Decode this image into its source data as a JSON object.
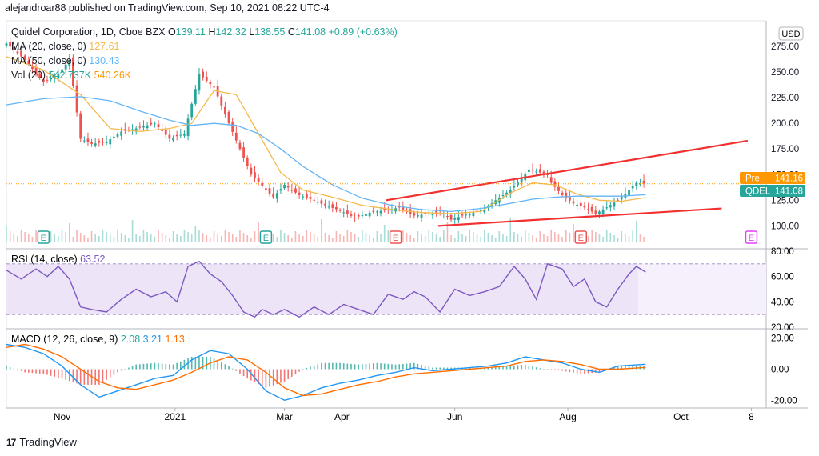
{
  "header": {
    "published": "alejandroar88 published on TradingView.com, Sep 10, 2021 08:22 UTC-4"
  },
  "footer": {
    "brand": "TradingView"
  },
  "colors": {
    "up": "#26a69a",
    "down": "#ef5350",
    "ma20": "#f6b94b",
    "ma50": "#64b5f6",
    "rsi": "#7e57c2",
    "trend": "#f23030",
    "pre": "#ff9800",
    "last": "#26a69a"
  },
  "chart_data": [
    {
      "type": "line",
      "title": "Quidel Corporation, 1D, Cboe BZX",
      "ohlc": {
        "o_label": "O",
        "o": "139.11",
        "h_label": "H",
        "h": "142.32",
        "l_label": "L",
        "l": "138.55",
        "c_label": "C",
        "c": "141.08",
        "change": "+0.89 (+0.63%)"
      },
      "currency": "USD",
      "indicators": [
        {
          "label": "MA (20, close, 0)",
          "value": "127.61"
        },
        {
          "label": "MA (50, close, 0)",
          "value": "130.43"
        },
        {
          "label": "Vol (20)",
          "value": "542.737K",
          "value2": "540.26K"
        }
      ],
      "ylim": [
        80,
        300
      ],
      "yticks": [
        "100.00",
        "125.00",
        "150.00",
        "175.00",
        "200.00",
        "225.00",
        "250.00",
        "275.00"
      ],
      "x_labels": [
        {
          "label": "Nov",
          "day": 30
        },
        {
          "label": "2021",
          "day": 91
        },
        {
          "label": "Mar",
          "day": 150
        },
        {
          "label": "Apr",
          "day": 181
        },
        {
          "label": "Jun",
          "day": 242
        },
        {
          "label": "Aug",
          "day": 303
        },
        {
          "label": "Oct",
          "day": 364
        },
        {
          "label": "8",
          "day": 402
        }
      ],
      "day_range": [
        0,
        410
      ],
      "last_day": 345,
      "series": [
        {
          "name": "Close",
          "x": [
            0,
            10,
            20,
            28,
            34,
            40,
            46,
            54,
            62,
            70,
            80,
            88,
            96,
            104,
            112,
            120,
            132,
            144,
            150,
            158,
            166,
            172,
            180,
            188,
            196,
            204,
            212,
            220,
            228,
            236,
            240,
            246,
            252,
            258,
            264,
            272,
            282,
            292,
            294,
            300,
            306,
            312,
            318,
            324,
            330,
            336,
            340,
            345
          ],
          "values": [
            278,
            262,
            240,
            248,
            262,
            185,
            180,
            182,
            192,
            195,
            200,
            185,
            190,
            248,
            235,
            200,
            150,
            128,
            140,
            130,
            125,
            120,
            115,
            108,
            113,
            115,
            118,
            110,
            112,
            112,
            106,
            110,
            113,
            116,
            125,
            135,
            155,
            150,
            142,
            130,
            122,
            118,
            112,
            118,
            125,
            135,
            142,
            141.08
          ]
        },
        {
          "name": "MA (20, close, 0)",
          "x": [
            0,
            20,
            40,
            56,
            72,
            88,
            100,
            112,
            124,
            136,
            148,
            160,
            176,
            192,
            208,
            224,
            240,
            256,
            272,
            284,
            296,
            308,
            320,
            332,
            345
          ],
          "values": [
            265,
            252,
            228,
            195,
            192,
            195,
            200,
            232,
            228,
            190,
            152,
            135,
            128,
            120,
            116,
            113,
            112,
            114,
            132,
            142,
            140,
            131,
            125,
            124,
            127.61
          ]
        },
        {
          "name": "MA (50, close, 0)",
          "x": [
            0,
            20,
            40,
            56,
            72,
            88,
            100,
            112,
            124,
            136,
            148,
            160,
            176,
            192,
            208,
            224,
            240,
            256,
            272,
            284,
            296,
            308,
            320,
            332,
            345
          ],
          "values": [
            218,
            224,
            226,
            222,
            212,
            203,
            198,
            200,
            198,
            190,
            175,
            158,
            140,
            127,
            120,
            116,
            114,
            117,
            122,
            126,
            128,
            129,
            129,
            129,
            130.43
          ]
        }
      ],
      "events": [
        {
          "type": "earnings",
          "label": "E",
          "day": 20,
          "status": "past-beat"
        },
        {
          "type": "earnings",
          "label": "E",
          "day": 140,
          "status": "past-beat"
        },
        {
          "type": "earnings",
          "label": "E",
          "day": 210,
          "status": "past-miss"
        },
        {
          "type": "earnings",
          "label": "E",
          "day": 310,
          "status": "past-miss"
        },
        {
          "type": "earnings",
          "label": "E",
          "day": 402,
          "status": "upcoming"
        }
      ],
      "trendlines": [
        {
          "from": [
            205,
            125
          ],
          "to": [
            400,
            183
          ]
        },
        {
          "from": [
            233,
            100
          ],
          "to": [
            386,
            117
          ]
        }
      ],
      "price_labels": [
        {
          "tag": "Pre",
          "value": "141.16",
          "color": "#ff9800"
        },
        {
          "tag": "QDEL",
          "value": "141.08",
          "color": "#26a69a"
        }
      ]
    },
    {
      "type": "line",
      "title": "RSI (14, close)",
      "value": "63.52",
      "ylim": [
        20,
        80
      ],
      "yticks": [
        "20.00",
        "40.00",
        "60.00",
        "80.00"
      ],
      "band": [
        30,
        70
      ],
      "series": [
        {
          "name": "RSI",
          "x": [
            0,
            8,
            16,
            22,
            28,
            34,
            40,
            46,
            54,
            62,
            70,
            78,
            86,
            92,
            98,
            104,
            110,
            116,
            122,
            128,
            134,
            138,
            144,
            150,
            158,
            166,
            174,
            182,
            190,
            198,
            206,
            214,
            220,
            226,
            234,
            242,
            250,
            258,
            266,
            274,
            280,
            286,
            292,
            300,
            306,
            312,
            318,
            324,
            330,
            336,
            340,
            345
          ],
          "values": [
            65,
            58,
            66,
            60,
            68,
            58,
            36,
            34,
            32,
            42,
            50,
            44,
            48,
            40,
            68,
            72,
            62,
            56,
            45,
            32,
            28,
            34,
            30,
            34,
            28,
            36,
            30,
            38,
            34,
            30,
            46,
            42,
            48,
            44,
            32,
            50,
            45,
            48,
            52,
            68,
            58,
            42,
            70,
            66,
            52,
            58,
            40,
            36,
            50,
            62,
            68,
            63.52
          ]
        }
      ]
    },
    {
      "type": "line",
      "title": "MACD (12, 26, close, 9)",
      "values_shown": {
        "histogram": "2.08",
        "macd": "3.21",
        "signal": "1.13"
      },
      "ylim": [
        -25,
        25
      ],
      "yticks": [
        "-20.00",
        "0.00",
        "20.00"
      ],
      "series": [
        {
          "name": "MACD",
          "x": [
            0,
            10,
            20,
            30,
            40,
            50,
            60,
            70,
            80,
            90,
            100,
            110,
            120,
            130,
            140,
            150,
            160,
            170,
            180,
            190,
            200,
            210,
            220,
            230,
            240,
            250,
            260,
            270,
            280,
            290,
            300,
            310,
            320,
            330,
            345
          ],
          "values": [
            16,
            14,
            10,
            2,
            -10,
            -18,
            -14,
            -10,
            -6,
            -4,
            6,
            12,
            10,
            0,
            -14,
            -20,
            -17,
            -12,
            -9,
            -7,
            -4,
            -2,
            1,
            -1,
            0,
            1,
            2,
            4,
            8,
            6,
            4,
            0,
            -2,
            2,
            3.21
          ]
        },
        {
          "name": "Signal",
          "x": [
            0,
            10,
            20,
            30,
            40,
            50,
            60,
            70,
            80,
            90,
            100,
            110,
            120,
            130,
            140,
            150,
            160,
            170,
            180,
            190,
            200,
            210,
            220,
            230,
            240,
            250,
            260,
            270,
            280,
            290,
            300,
            310,
            320,
            330,
            345
          ],
          "values": [
            14,
            16,
            13,
            8,
            0,
            -8,
            -12,
            -13,
            -10,
            -7,
            -2,
            4,
            8,
            6,
            -2,
            -12,
            -17,
            -16,
            -13,
            -10,
            -8,
            -5,
            -3,
            -2,
            -1,
            0,
            1,
            2,
            5,
            6,
            5,
            3,
            0,
            0,
            1.13
          ]
        }
      ]
    }
  ]
}
